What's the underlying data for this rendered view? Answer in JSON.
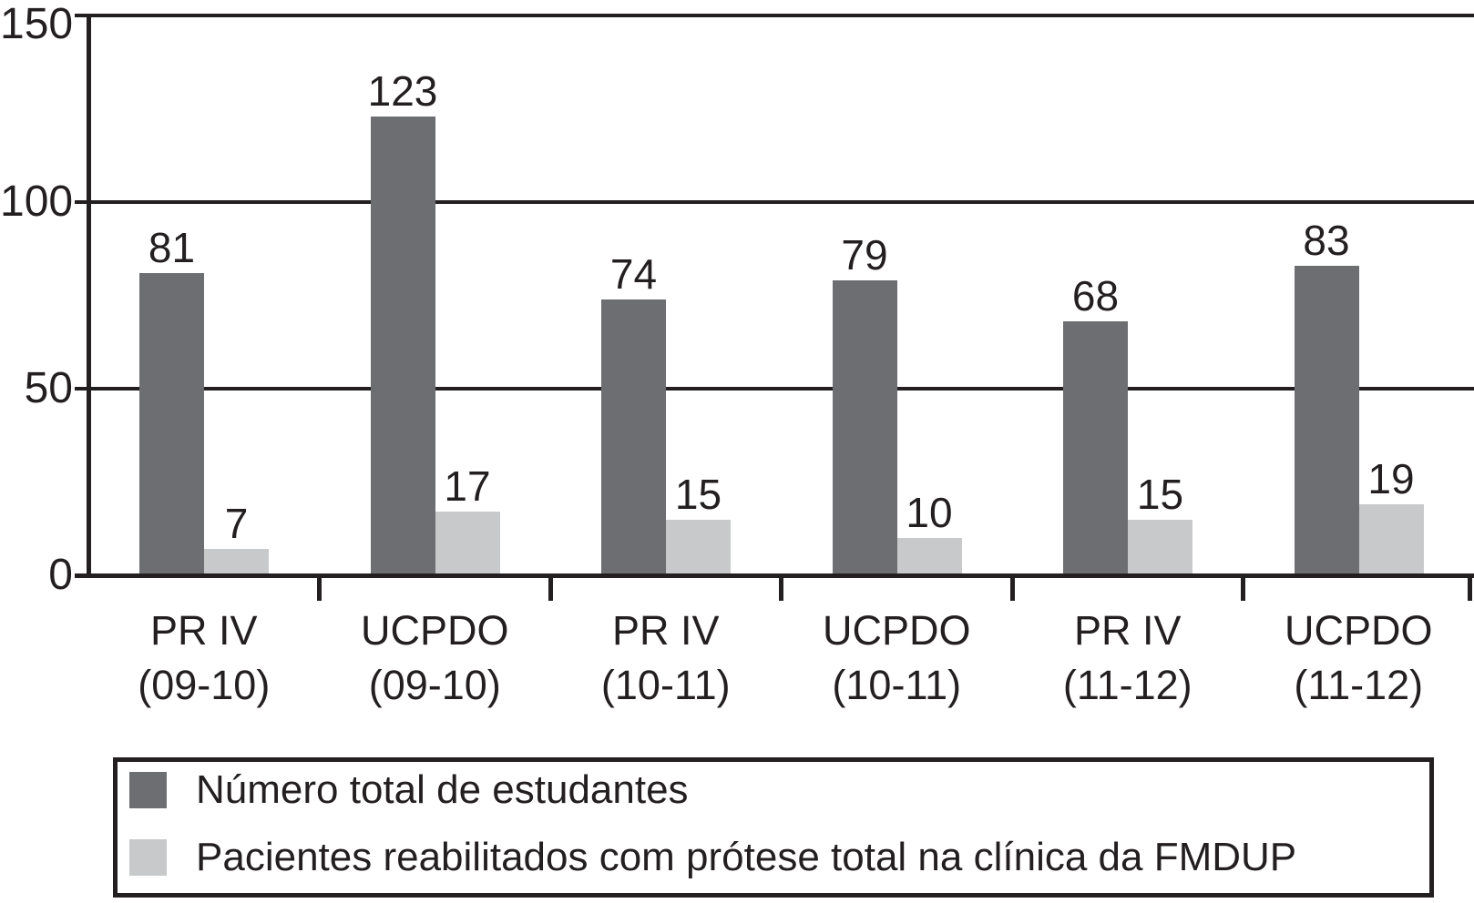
{
  "chart_data": {
    "type": "bar",
    "title": "",
    "xlabel": "",
    "ylabel": "",
    "categories": [
      {
        "line1": "PR IV",
        "line2": "(09-10)"
      },
      {
        "line1": "UCPDO",
        "line2": "(09-10)"
      },
      {
        "line1": "PR IV",
        "line2": "(10-11)"
      },
      {
        "line1": "UCPDO",
        "line2": "(10-11)"
      },
      {
        "line1": "PR IV",
        "line2": "(11-12)"
      },
      {
        "line1": "UCPDO",
        "line2": "(11-12)"
      }
    ],
    "series": [
      {
        "name": "Número total de estudantes",
        "color": "#6d6e71",
        "values": [
          81,
          123,
          74,
          79,
          68,
          83
        ]
      },
      {
        "name": "Pacientes reabilitados com prótese total na clínica da FMDUP",
        "color": "#c8c9ca",
        "values": [
          7,
          17,
          15,
          10,
          15,
          19
        ]
      }
    ],
    "yticks": [
      0,
      50,
      100,
      150
    ],
    "ylim": [
      0,
      150
    ],
    "grid": true,
    "bar_labels": true,
    "legend_position": "bottom"
  },
  "colors": {
    "ink": "#231f20",
    "background": "#ffffff"
  }
}
